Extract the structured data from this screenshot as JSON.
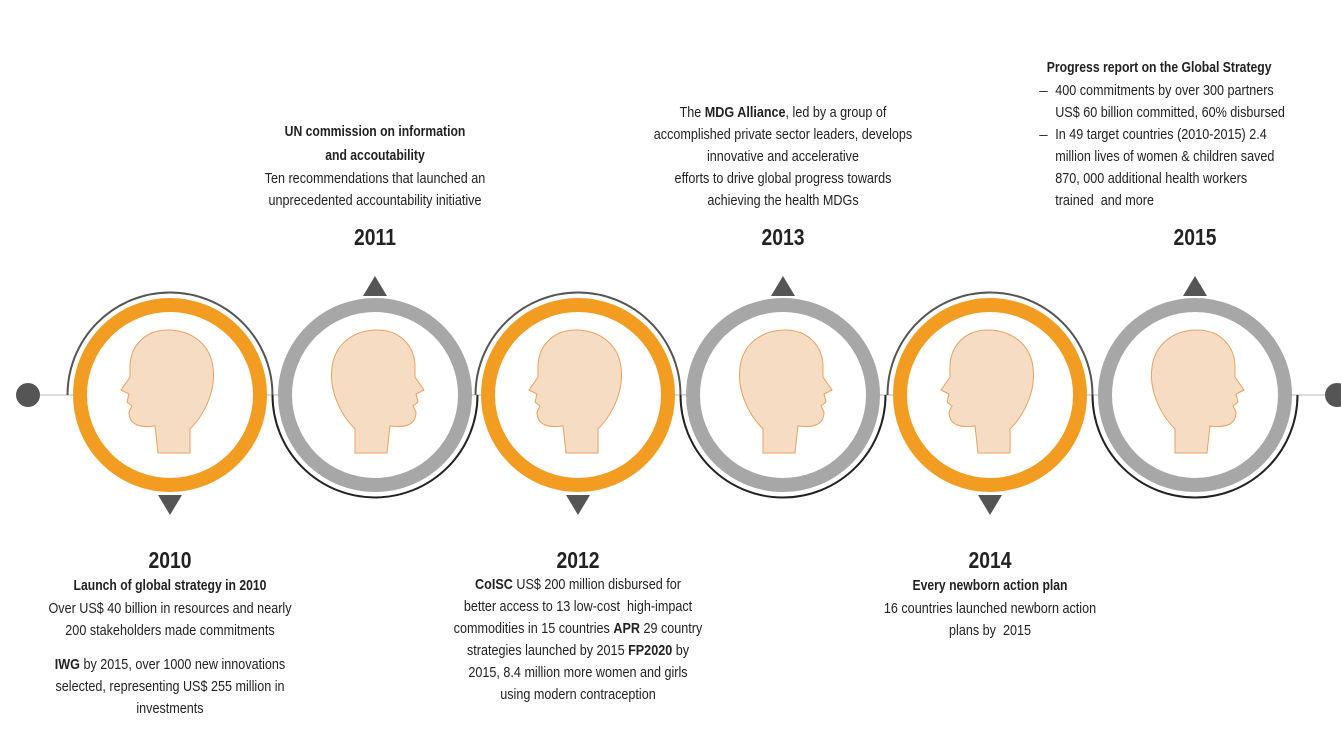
{
  "milestones": [
    {
      "year": "2010",
      "title": [
        "Launch of global strategy in 2010"
      ],
      "paragraphs": [
        [
          [
            "Over US$ 40 billion in resources and nearly"
          ],
          [
            "200 stakeholders made commitments"
          ]
        ],
        [
          [
            {
              "strong": "IWG"
            },
            " by 2015, over 1000 new innovations"
          ],
          [
            "selected, representing US$ 255 million in"
          ],
          [
            "investments"
          ]
        ]
      ]
    },
    {
      "year": "2011",
      "title": [
        "UN commission on information",
        "and accoutability"
      ],
      "paragraphs": [
        [
          [
            "Ten recommendations that launched an"
          ],
          [
            "unprecedented accountability initiative"
          ]
        ]
      ]
    },
    {
      "year": "2012",
      "title": [],
      "paragraphs": [
        [
          [
            {
              "strong": "CoISC"
            },
            " US$ 200 million disbursed for"
          ],
          [
            "better access to 13 low-cost  high-impact"
          ],
          [
            "commodities in 15 countries ",
            {
              "strong": "APR"
            },
            " 29 country"
          ],
          [
            "strategies launched by 2015 ",
            {
              "strong": "FP2020"
            },
            " by"
          ],
          [
            "2015, 8.4 million more women and girls"
          ],
          [
            "using modern contraception"
          ]
        ]
      ]
    },
    {
      "year": "2013",
      "title": [],
      "paragraphs": [
        [
          [
            "The ",
            {
              "strong": "MDG Alliance"
            },
            ", led by a group of"
          ],
          [
            "accomplished private sector leaders, develops"
          ],
          [
            "innovative and accelerative"
          ],
          [
            "efforts to drive global progress towards"
          ],
          [
            "achieving the health MDGs"
          ]
        ]
      ]
    },
    {
      "year": "2014",
      "title": [
        "Every newborn action plan"
      ],
      "paragraphs": [
        [
          [
            "16 countries launched newborn action"
          ],
          [
            "plans by  2015"
          ]
        ]
      ]
    },
    {
      "year": "2015",
      "title": [
        "Progress report on the Global Strategy"
      ],
      "bullets": [
        [
          [
            "400 commitments by over 300 partners"
          ],
          [
            "US$ 60 billion committed, 60% disbursed"
          ]
        ],
        [
          [
            "In 49 target countries (2010-2015) 2.4"
          ],
          [
            "million lives of women & children saved"
          ],
          [
            "870, 000 additional health workers"
          ],
          [
            "trained  and more"
          ]
        ]
      ]
    }
  ]
}
